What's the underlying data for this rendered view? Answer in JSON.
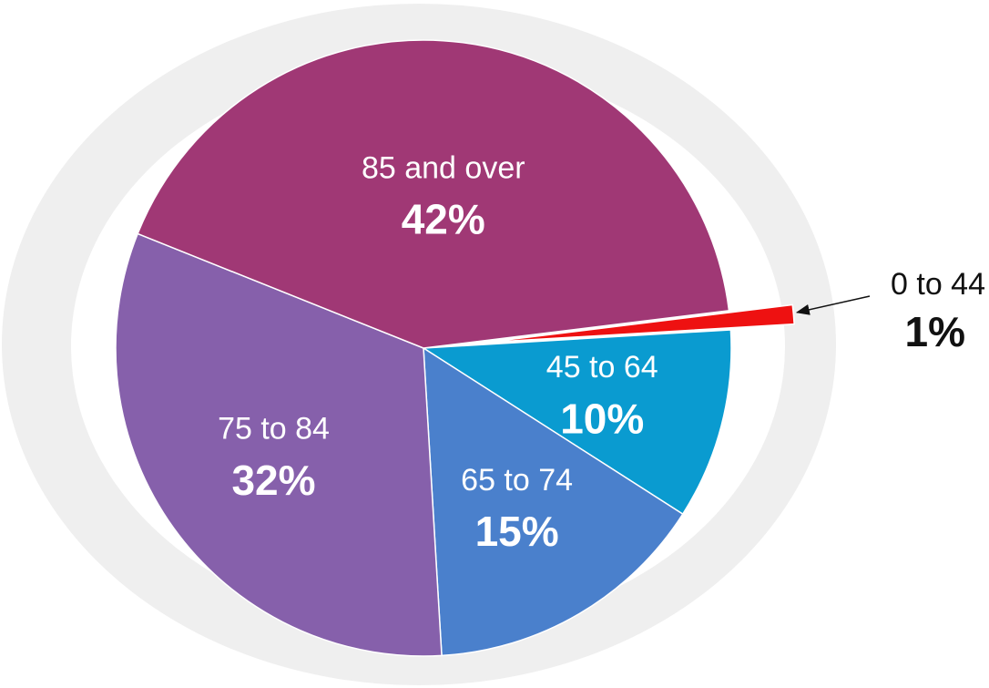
{
  "chart_data": {
    "type": "pie",
    "categories": [
      "0 to 44",
      "45 to 64",
      "65 to 74",
      "75 to 84",
      "85 and over"
    ],
    "values": [
      1,
      10,
      15,
      32,
      42
    ],
    "value_labels": [
      "1%",
      "10%",
      "15%",
      "32%",
      "42%"
    ],
    "colors": [
      "#ee1111",
      "#0a9bd0",
      "#4a80cc",
      "#8660ab",
      "#a03875"
    ]
  }
}
